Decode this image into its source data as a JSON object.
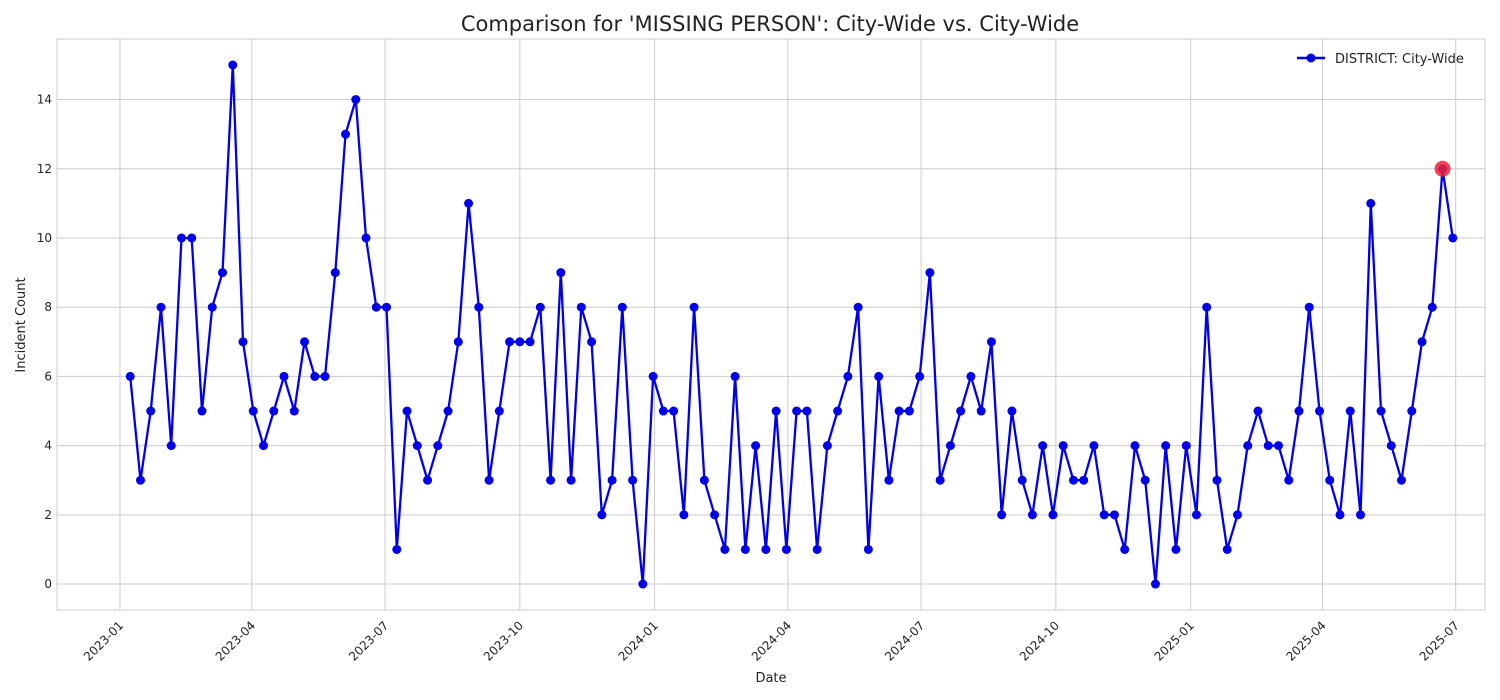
{
  "chart_data": {
    "type": "line",
    "title": "Comparison for 'MISSING PERSON': City-Wide vs. City-Wide",
    "xlabel": "Date",
    "ylabel": "Incident Count",
    "x_axis_type": "date",
    "xlim": [
      "2022-11-19",
      "2025-07-21"
    ],
    "ylim": [
      -0.75,
      15.75
    ],
    "x_ticks": [
      {
        "date": "2023-01-01",
        "label": "2023-01"
      },
      {
        "date": "2023-04-01",
        "label": "2023-04"
      },
      {
        "date": "2023-07-01",
        "label": "2023-07"
      },
      {
        "date": "2023-10-01",
        "label": "2023-10"
      },
      {
        "date": "2024-01-01",
        "label": "2024-01"
      },
      {
        "date": "2024-04-01",
        "label": "2024-04"
      },
      {
        "date": "2024-07-01",
        "label": "2024-07"
      },
      {
        "date": "2024-10-01",
        "label": "2024-10"
      },
      {
        "date": "2025-01-01",
        "label": "2025-01"
      },
      {
        "date": "2025-04-01",
        "label": "2025-04"
      },
      {
        "date": "2025-07-01",
        "label": "2025-07"
      }
    ],
    "y_ticks": [
      0,
      2,
      4,
      6,
      8,
      10,
      12,
      14
    ],
    "grid": true,
    "legend_position": "top-right",
    "series": [
      {
        "name": "DISTRICT: City-Wide",
        "color": "#0000ee",
        "x": [
          "2023-01-08",
          "2023-01-15",
          "2023-01-22",
          "2023-01-29",
          "2023-02-05",
          "2023-02-12",
          "2023-02-19",
          "2023-02-26",
          "2023-03-05",
          "2023-03-12",
          "2023-03-19",
          "2023-03-26",
          "2023-04-02",
          "2023-04-09",
          "2023-04-16",
          "2023-04-23",
          "2023-04-30",
          "2023-05-07",
          "2023-05-14",
          "2023-05-21",
          "2023-05-28",
          "2023-06-04",
          "2023-06-11",
          "2023-06-18",
          "2023-06-25",
          "2023-07-02",
          "2023-07-09",
          "2023-07-16",
          "2023-07-23",
          "2023-07-30",
          "2023-08-06",
          "2023-08-13",
          "2023-08-20",
          "2023-08-27",
          "2023-09-03",
          "2023-09-10",
          "2023-09-17",
          "2023-09-24",
          "2023-10-01",
          "2023-10-08",
          "2023-10-15",
          "2023-10-22",
          "2023-10-29",
          "2023-11-05",
          "2023-11-12",
          "2023-11-19",
          "2023-11-26",
          "2023-12-03",
          "2023-12-10",
          "2023-12-17",
          "2023-12-24",
          "2023-12-31",
          "2024-01-07",
          "2024-01-14",
          "2024-01-21",
          "2024-01-28",
          "2024-02-04",
          "2024-02-11",
          "2024-02-18",
          "2024-02-25",
          "2024-03-03",
          "2024-03-10",
          "2024-03-17",
          "2024-03-24",
          "2024-03-31",
          "2024-04-07",
          "2024-04-14",
          "2024-04-21",
          "2024-04-28",
          "2024-05-05",
          "2024-05-12",
          "2024-05-19",
          "2024-05-26",
          "2024-06-02",
          "2024-06-09",
          "2024-06-16",
          "2024-06-23",
          "2024-06-30",
          "2024-07-07",
          "2024-07-14",
          "2024-07-21",
          "2024-07-28",
          "2024-08-04",
          "2024-08-11",
          "2024-08-18",
          "2024-08-25",
          "2024-09-01",
          "2024-09-08",
          "2024-09-15",
          "2024-09-22",
          "2024-09-29",
          "2024-10-06",
          "2024-10-13",
          "2024-10-20",
          "2024-10-27",
          "2024-11-03",
          "2024-11-10",
          "2024-11-17",
          "2024-11-24",
          "2024-12-01",
          "2024-12-08",
          "2024-12-15",
          "2024-12-22",
          "2024-12-29",
          "2025-01-05",
          "2025-01-12",
          "2025-01-19",
          "2025-01-26",
          "2025-02-02",
          "2025-02-09",
          "2025-02-16",
          "2025-02-23",
          "2025-03-02",
          "2025-03-09",
          "2025-03-16",
          "2025-03-23",
          "2025-03-30",
          "2025-04-06",
          "2025-04-13",
          "2025-04-20",
          "2025-04-27",
          "2025-05-04",
          "2025-05-11",
          "2025-05-18",
          "2025-05-25",
          "2025-06-01",
          "2025-06-08",
          "2025-06-15",
          "2025-06-22",
          "2025-06-29"
        ],
        "values": [
          6,
          3,
          5,
          8,
          4,
          10,
          10,
          5,
          8,
          9,
          15,
          7,
          5,
          4,
          5,
          6,
          5,
          7,
          6,
          6,
          9,
          13,
          14,
          10,
          8,
          8,
          1,
          5,
          4,
          3,
          4,
          5,
          7,
          11,
          8,
          3,
          5,
          7,
          7,
          7,
          8,
          3,
          9,
          3,
          8,
          7,
          2,
          3,
          8,
          3,
          0,
          6,
          5,
          5,
          2,
          8,
          3,
          2,
          1,
          6,
          1,
          4,
          1,
          5,
          1,
          5,
          5,
          1,
          4,
          5,
          6,
          8,
          1,
          6,
          3,
          5,
          5,
          6,
          9,
          3,
          4,
          5,
          6,
          5,
          7,
          2,
          5,
          3,
          2,
          4,
          2,
          4,
          3,
          3,
          4,
          2,
          2,
          1,
          4,
          3,
          0,
          4,
          1,
          4,
          2,
          8,
          3,
          1,
          2,
          4,
          5,
          4,
          4,
          3,
          5,
          8,
          5,
          3,
          2,
          5,
          2,
          11,
          5,
          4,
          3,
          5,
          7,
          8,
          12,
          10
        ]
      }
    ],
    "highlight": {
      "x": "2025-06-22",
      "value": 12,
      "color": "#ee2233"
    }
  }
}
